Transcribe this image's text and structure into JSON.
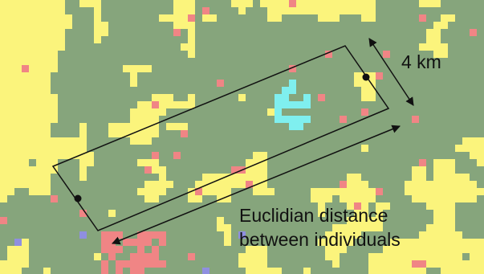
{
  "annotations": {
    "scale_label": "4 km",
    "distance_label": [
      "Euclidian distance",
      "between individuals"
    ]
  }
}
